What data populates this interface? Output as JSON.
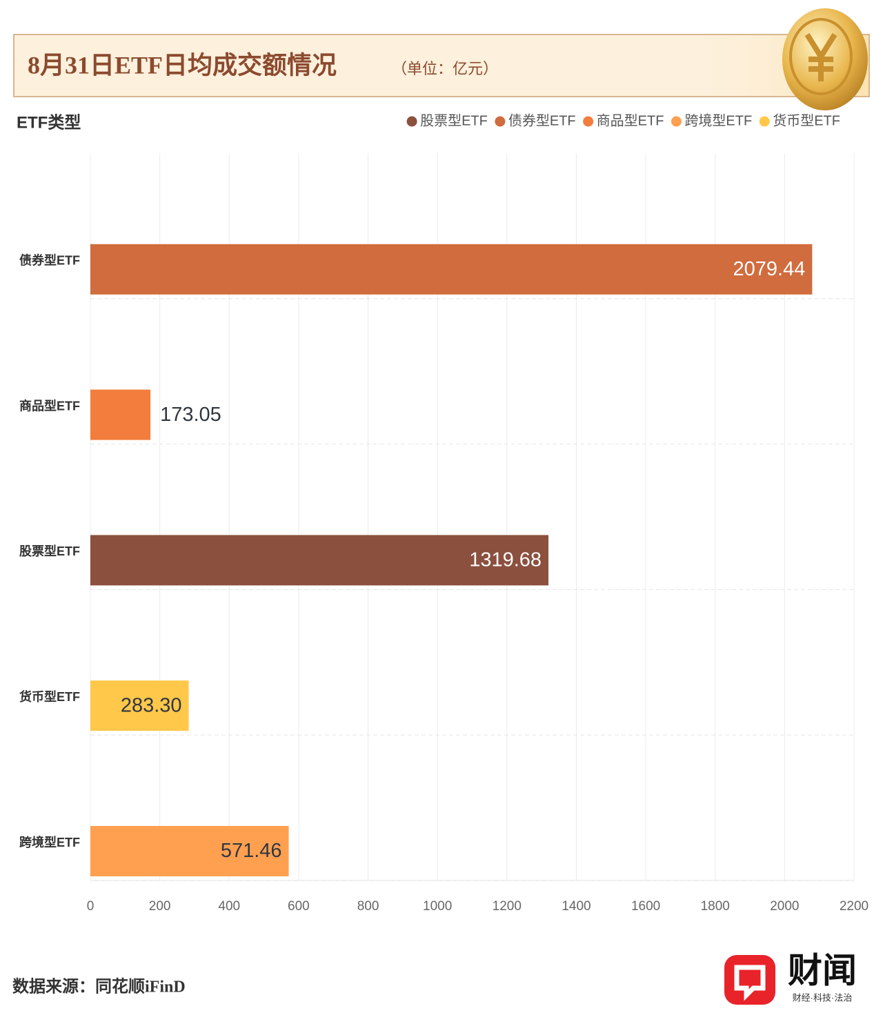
{
  "chart_data": {
    "type": "bar",
    "orientation": "horizontal",
    "title": "8月31日ETF日均成交额情况",
    "subtitle": "（单位：亿元）",
    "y_axis_label": "ETF类型",
    "categories": [
      "债券型ETF",
      "商品型ETF",
      "股票型ETF",
      "货币型ETF",
      "跨境型ETF"
    ],
    "series": [
      {
        "name": "股票型ETF",
        "color": "#8b503e",
        "values": [
          null,
          null,
          1319.68,
          null,
          null
        ],
        "value_labels": [
          null,
          null,
          "1319.68",
          null,
          null
        ]
      },
      {
        "name": "债券型ETF",
        "color": "#d06c3e",
        "values": [
          2079.44,
          null,
          null,
          null,
          null
        ],
        "value_labels": [
          "2079.44",
          null,
          null,
          null,
          null
        ]
      },
      {
        "name": "商品型ETF",
        "color": "#f27d3d",
        "values": [
          null,
          173.05,
          null,
          null,
          null
        ],
        "value_labels": [
          null,
          "173.05",
          null,
          null,
          null
        ]
      },
      {
        "name": "跨境型ETF",
        "color": "#ffa050",
        "values": [
          null,
          null,
          null,
          null,
          571.46
        ],
        "value_labels": [
          null,
          null,
          null,
          null,
          "571.46"
        ]
      },
      {
        "name": "货币型ETF",
        "color": "#ffc84a",
        "values": [
          null,
          null,
          null,
          283.3,
          null
        ],
        "value_labels": [
          null,
          null,
          null,
          "283.30",
          null
        ]
      }
    ],
    "xlim": [
      0,
      2200
    ],
    "xticks": [
      0,
      200,
      400,
      600,
      800,
      1000,
      1200,
      1400,
      1600,
      1800,
      2000,
      2200
    ],
    "grid": true,
    "legend": "top-right",
    "source": "数据来源：同花顺iFinD",
    "brand": "财闻",
    "brand_tagline": "财经·科技·法治"
  }
}
